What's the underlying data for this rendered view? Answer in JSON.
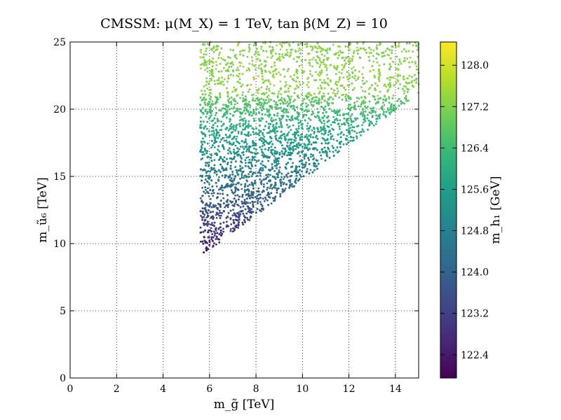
{
  "chart_data": {
    "type": "scatter",
    "title": "CMSSM: μ(M_X) = 1 TeV, tan β(M_Z) = 10",
    "xlabel": "m_g̃ [TeV]",
    "ylabel": "m_ũ₆ [TeV]",
    "xlim": [
      0,
      15
    ],
    "ylim": [
      0,
      25
    ],
    "xticks": [
      0,
      2,
      4,
      6,
      8,
      10,
      12,
      14
    ],
    "yticks": [
      0,
      5,
      10,
      15,
      20,
      25
    ],
    "grid": true,
    "colorbar": {
      "label": "m_h₁ [GeV]",
      "range": [
        121.95,
        128.45
      ],
      "ticks": [
        "122.4",
        "123.2",
        "124.0",
        "124.8",
        "125.6",
        "126.4",
        "127.2",
        "128.0"
      ],
      "colormap": "viridis",
      "colors": [
        "#440154",
        "#482878",
        "#3e4989",
        "#31688e",
        "#26828e",
        "#1f9e89",
        "#35b779",
        "#6ece58",
        "#b5de2b",
        "#fde725"
      ]
    },
    "region": {
      "description_boundary": [
        [
          5.6,
          9.0
        ],
        [
          5.6,
          25.0
        ],
        [
          15.0,
          25.0
        ],
        [
          15.0,
          21.2
        ]
      ],
      "mass_band_upper_step_y": 21.0,
      "approx_mass_range_gev": [
        122.2,
        127.6
      ]
    }
  }
}
